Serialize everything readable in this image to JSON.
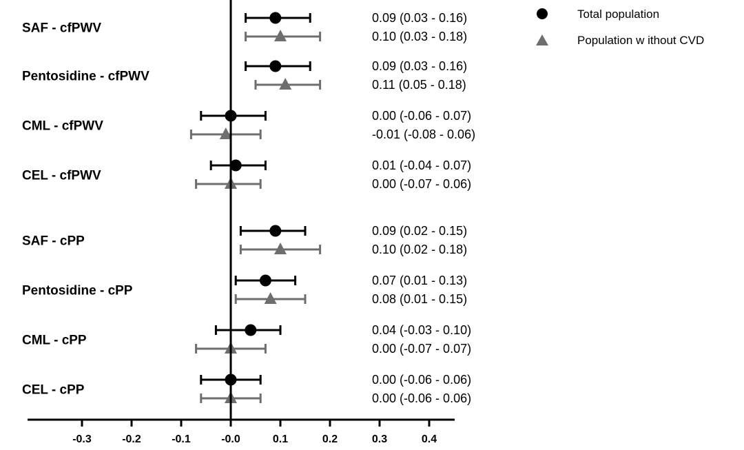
{
  "chart_data": {
    "type": "forest",
    "xlabel": "",
    "ylabel": "",
    "xlim": [
      -0.4,
      0.4
    ],
    "xticks": [
      "-0.3",
      "-0.2",
      "-0.1",
      "-0.0",
      "0.1",
      "0.2",
      "0.3",
      "0.4"
    ],
    "xtick_values": [
      -0.3,
      -0.2,
      -0.1,
      0.0,
      0.1,
      0.2,
      0.3,
      0.4
    ],
    "reference_line": 0,
    "colors": {
      "total": "#000000",
      "no_cvd": "#6e6e6e"
    },
    "series": [
      {
        "name": "Total population",
        "marker": "circle"
      },
      {
        "name": "Population w ithout CVD",
        "marker": "triangle"
      }
    ],
    "rows": [
      {
        "label": "SAF - cfPWV",
        "total": {
          "est": 0.09,
          "lo": 0.03,
          "hi": 0.16,
          "text": "0.09 (0.03 - 0.16)"
        },
        "no_cvd": {
          "est": 0.1,
          "lo": 0.03,
          "hi": 0.18,
          "text": "0.10 (0.03 - 0.18)"
        }
      },
      {
        "label": "Pentosidine - cfPWV",
        "total": {
          "est": 0.09,
          "lo": 0.03,
          "hi": 0.16,
          "text": "0.09 (0.03 - 0.16)"
        },
        "no_cvd": {
          "est": 0.11,
          "lo": 0.05,
          "hi": 0.18,
          "text": "0.11 (0.05 - 0.18)"
        }
      },
      {
        "label": "CML - cfPWV",
        "total": {
          "est": 0.0,
          "lo": -0.06,
          "hi": 0.07,
          "text": "0.00 (-0.06 - 0.07)"
        },
        "no_cvd": {
          "est": -0.01,
          "lo": -0.08,
          "hi": 0.06,
          "text": "-0.01 (-0.08 - 0.06)"
        }
      },
      {
        "label": "CEL - cfPWV",
        "total": {
          "est": 0.01,
          "lo": -0.04,
          "hi": 0.07,
          "text": "0.01 (-0.04 - 0.07)"
        },
        "no_cvd": {
          "est": 0.0,
          "lo": -0.07,
          "hi": 0.06,
          "text": "0.00 (-0.07 - 0.06)"
        }
      },
      {
        "label": "SAF - cPP",
        "total": {
          "est": 0.09,
          "lo": 0.02,
          "hi": 0.15,
          "text": "0.09 (0.02 - 0.15)"
        },
        "no_cvd": {
          "est": 0.1,
          "lo": 0.02,
          "hi": 0.18,
          "text": "0.10 (0.02 - 0.18)"
        }
      },
      {
        "label": "Pentosidine - cPP",
        "total": {
          "est": 0.07,
          "lo": 0.01,
          "hi": 0.13,
          "text": "0.07 (0.01 - 0.13)"
        },
        "no_cvd": {
          "est": 0.08,
          "lo": 0.01,
          "hi": 0.15,
          "text": "0.08 (0.01 - 0.15)"
        }
      },
      {
        "label": "CML - cPP",
        "total": {
          "est": 0.04,
          "lo": -0.03,
          "hi": 0.1,
          "text": "0.04 (-0.03 - 0.10)"
        },
        "no_cvd": {
          "est": 0.0,
          "lo": -0.07,
          "hi": 0.07,
          "text": "0.00 (-0.07 - 0.07)"
        }
      },
      {
        "label": "CEL - cPP",
        "total": {
          "est": 0.0,
          "lo": -0.06,
          "hi": 0.06,
          "text": "0.00 (-0.06 - 0.06)"
        },
        "no_cvd": {
          "est": 0.0,
          "lo": -0.06,
          "hi": 0.06,
          "text": "0.00 (-0.06 - 0.06)"
        }
      }
    ]
  }
}
